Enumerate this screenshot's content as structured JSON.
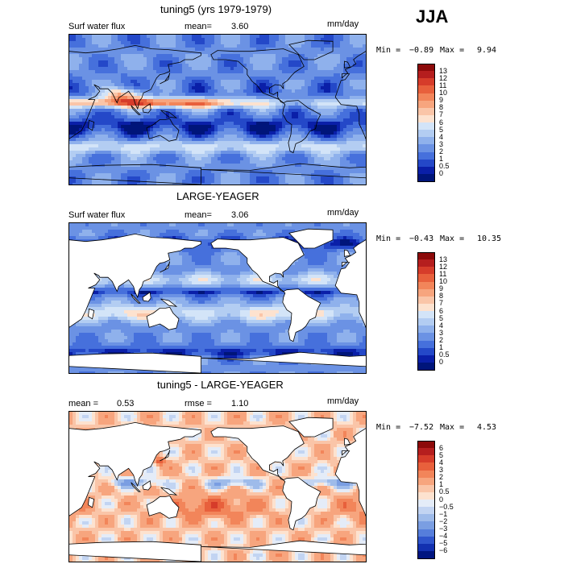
{
  "season": "JJA",
  "panels": [
    {
      "id": "model",
      "title": "tuning5 (yrs 1979-1979)",
      "field": "Surf water flux",
      "mean_label": "mean=",
      "mean_value": "3.60",
      "rmse_label": "",
      "rmse_value": "",
      "units": "mm/day",
      "min_label": "Min =",
      "min_value": "−0.89",
      "max_label": "Max =",
      "max_value": "9.94",
      "ocean_only": false,
      "colorbar_labels": [
        "13",
        "12",
        "11",
        "10",
        "9",
        "8",
        "7",
        "6",
        "5",
        "4",
        "3",
        "2",
        "1",
        "0.5",
        "0"
      ],
      "colorbar_colors": [
        "#8c0a0a",
        "#b51e1e",
        "#d63c2a",
        "#e8603c",
        "#f2855a",
        "#f7a57e",
        "#fac5a8",
        "#fde2cf",
        "#d3e4f8",
        "#b3cdf2",
        "#8fb1ec",
        "#6b92e4",
        "#4670dc",
        "#2448c8",
        "#0a1fa8",
        "#00157a"
      ]
    },
    {
      "id": "obs",
      "title": "LARGE-YEAGER",
      "field": "Surf water flux",
      "mean_label": "mean=",
      "mean_value": "3.06",
      "rmse_label": "",
      "rmse_value": "",
      "units": "mm/day",
      "min_label": "Min =",
      "min_value": "−0.43",
      "max_label": "Max =",
      "max_value": "10.35",
      "ocean_only": true,
      "colorbar_labels": [
        "13",
        "12",
        "11",
        "10",
        "9",
        "8",
        "7",
        "6",
        "5",
        "4",
        "3",
        "2",
        "1",
        "0.5",
        "0"
      ],
      "colorbar_colors": [
        "#8c0a0a",
        "#b51e1e",
        "#d63c2a",
        "#e8603c",
        "#f2855a",
        "#f7a57e",
        "#fac5a8",
        "#fde2cf",
        "#d3e4f8",
        "#b3cdf2",
        "#8fb1ec",
        "#6b92e4",
        "#4670dc",
        "#2448c8",
        "#0a1fa8",
        "#00157a"
      ]
    },
    {
      "id": "diff",
      "title": "tuning5 - LARGE-YEAGER",
      "field": "",
      "mean_label": "mean =",
      "mean_value": "0.53",
      "rmse_label": "rmse =",
      "rmse_value": "1.10",
      "units": "mm/day",
      "min_label": "Min =",
      "min_value": "−7.52",
      "max_label": "Max =",
      "max_value": "4.53",
      "ocean_only": true,
      "colorbar_labels": [
        "6",
        "5",
        "4",
        "3",
        "2",
        "1",
        "0.5",
        "0",
        "−0.5",
        "−1",
        "−2",
        "−3",
        "−4",
        "−5",
        "−6"
      ],
      "colorbar_colors": [
        "#8c0a0a",
        "#b51e1e",
        "#d63c2a",
        "#e8603c",
        "#f2855a",
        "#f7a57e",
        "#fac5a8",
        "#fde2cf",
        "#e4ecf8",
        "#c2d4f2",
        "#9ebbea",
        "#7a9ee2",
        "#567edb",
        "#2f55cc",
        "#1230b0",
        "#001580"
      ]
    }
  ]
}
